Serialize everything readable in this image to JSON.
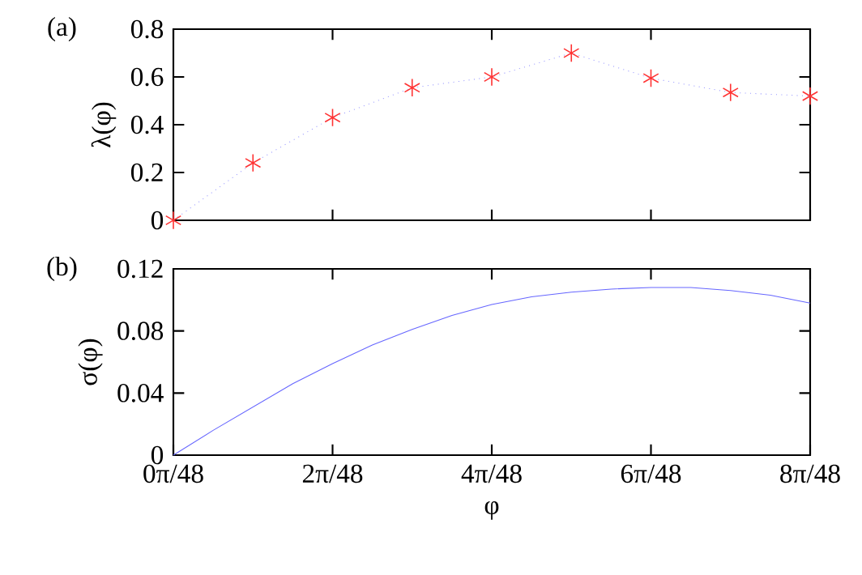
{
  "chart_data": [
    {
      "type": "line",
      "ylabel": "λ(φ)",
      "annotations": [
        "(a)"
      ],
      "tick_labels": "y",
      "grid": false,
      "xlim": [
        0,
        0.5236
      ],
      "xticks": [
        0,
        0.1309,
        0.2618,
        0.3927,
        0.5236
      ],
      "ylim": [
        0,
        0.8
      ],
      "yticks": [
        0,
        0.2,
        0.4,
        0.6,
        0.8
      ],
      "x": [
        0,
        0.06545,
        0.1309,
        0.19635,
        0.2618,
        0.32725,
        0.3927,
        0.45815,
        0.5236
      ],
      "series": [
        {
          "color": "#9999ff",
          "line_style": "dotted",
          "marker": "none",
          "values": [
            0,
            0.24,
            0.43,
            0.555,
            0.6,
            0.7,
            0.595,
            0.535,
            0.52
          ]
        },
        {
          "type": "scatter",
          "color": "#ff3333",
          "marker": "cross",
          "values": [
            0,
            0.24,
            0.43,
            0.555,
            0.6,
            0.7,
            0.595,
            0.535,
            0.52
          ]
        }
      ]
    },
    {
      "type": "line",
      "ylabel": "σ(φ)",
      "xlabel": "φ",
      "annotations": [
        "(b)"
      ],
      "grid": false,
      "xlim": [
        0,
        0.5236
      ],
      "xticks": [
        {
          "value": 0,
          "label": "0π/48"
        },
        {
          "value": 0.1309,
          "label": "2π/48"
        },
        {
          "value": 0.2618,
          "label": "4π/48"
        },
        {
          "value": 0.3927,
          "label": "6π/48"
        },
        {
          "value": 0.5236,
          "label": "8π/48"
        }
      ],
      "ylim": [
        0,
        0.12
      ],
      "yticks": [
        0,
        0.04,
        0.08,
        0.12
      ],
      "x": [
        0,
        0.0327,
        0.06545,
        0.0982,
        0.1309,
        0.1636,
        0.19635,
        0.2291,
        0.2618,
        0.2945,
        0.32725,
        0.36,
        0.3927,
        0.4254,
        0.45815,
        0.4909,
        0.5236
      ],
      "series": [
        {
          "color": "#6666ff",
          "line_style": "solid",
          "marker": "none",
          "values": [
            0,
            0.016,
            0.031,
            0.046,
            0.059,
            0.071,
            0.081,
            0.09,
            0.097,
            0.102,
            0.105,
            0.107,
            0.108,
            0.108,
            0.106,
            0.103,
            0.098
          ]
        }
      ]
    }
  ]
}
